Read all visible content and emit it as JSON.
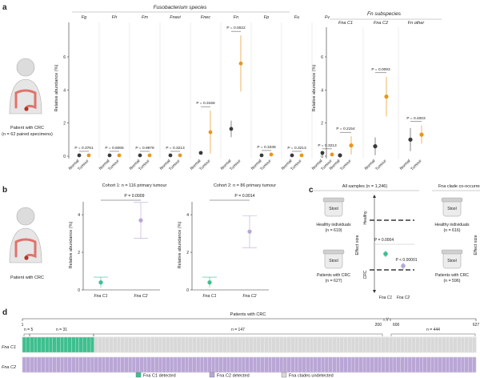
{
  "panel_labels": {
    "a": "a",
    "b": "b",
    "c": "c",
    "d": "d"
  },
  "colors": {
    "normal": "#3a3a3a",
    "tumour": "#e8961e",
    "fna_c1": "#3fbf8f",
    "fna_c2": "#b9a6d6",
    "undetected": "#d8d8d8",
    "axis": "#333333",
    "pbar": "#444444"
  },
  "panel_a": {
    "species_title": "Fusobacterium species",
    "subspecies_title": "Fn subspecies",
    "patient_label": "Patient with CRC",
    "patient_sub": "(n = 62 paired specimens)",
    "ylabel": "Relative abundance (%)",
    "xticks": [
      "Normal",
      "Tumour"
    ],
    "yticks_left": [
      "0",
      "2",
      "4",
      "6"
    ],
    "yticks_right": [
      "0",
      "2",
      "4",
      "6"
    ],
    "species": [
      {
        "name": "Fg",
        "p": "P = 0.3761",
        "normal": 0.05,
        "tumour": 0.05
      },
      {
        "name": "Fh",
        "p": "P = 0.6065",
        "normal": 0.05,
        "tumour": 0.05
      },
      {
        "name": "Fm",
        "p": "P = 0.9978",
        "normal": 0.05,
        "tumour": 0.05
      },
      {
        "name": "Fnavi",
        "p": "P = 0.3213",
        "normal": 0.05,
        "tumour": 0.05
      },
      {
        "name": "Fnec",
        "p": "P = 0.3158",
        "normal": 0.2,
        "tumour": 1.45
      },
      {
        "name": "Fn",
        "p": "P = 0.0022",
        "normal": 1.65,
        "tumour": 5.6
      },
      {
        "name": "Fp",
        "p": "P = 0.3338",
        "normal": 0.05,
        "tumour": 0.1
      },
      {
        "name": "Fu",
        "p": "P = 0.3213",
        "normal": 0.05,
        "tumour": 0.05
      },
      {
        "name": "Fv",
        "p": "P = 0.3213",
        "normal": 0.2,
        "tumour": 0.1
      }
    ],
    "subspecies": [
      {
        "name": "Fna C1",
        "p": "P = 0.2154",
        "normal": 0.05,
        "tumour": 0.65
      },
      {
        "name": "Fna C2",
        "p": "P = 0.0093",
        "normal": 0.6,
        "tumour": 3.6
      },
      {
        "name": "Fn other",
        "p": "P = 0.4003",
        "normal": 1.0,
        "tumour": 1.3
      }
    ]
  },
  "panel_b": {
    "patient_label": "Patient with CRC",
    "ylabel": "Relative abundance (%)",
    "cohorts": [
      {
        "title": "Cohort 1: n = 116 primary tumour",
        "p": "P = 0.0009",
        "c1": 0.4,
        "c2": 3.7,
        "yticks": [
          "0",
          "2",
          "4"
        ]
      },
      {
        "title": "Cohort 2: n = 86 primary tumour",
        "p": "P = 0.0014",
        "c1": 0.4,
        "c2": 3.1,
        "yticks": [
          "0",
          "2",
          "4"
        ]
      }
    ],
    "xticks": [
      "Fna C1",
      "Fna C2"
    ]
  },
  "panel_c": {
    "groups": [
      {
        "title": "All samples (n = 1,246)",
        "healthy": "Healthy individuals",
        "healthy_n": "(n = 619)",
        "crc": "Patients with CRC",
        "crc_n": "(n = 627)",
        "p": "P = 0.0004",
        "p2": "P < 0.00001",
        "c1": -0.2,
        "c2": -0.45
      },
      {
        "title": "Fna clade co-occurrence excluded (n = 1,212)",
        "healthy": "Healthy individuals",
        "healthy_n": "(n = 616)",
        "crc": "Patients with CRC",
        "crc_n": "(n = 596)",
        "p": "NS",
        "p2": "P < 0.00001",
        "c1": -0.05,
        "c2": -0.45
      }
    ],
    "stool_label": "Stool",
    "ylabel": "Effect size",
    "healthy_axis": "Healthy",
    "crc_axis": "CRC",
    "xticks": [
      "Fna C1",
      "Fna C2"
    ]
  },
  "panel_d": {
    "title": "Patients with CRC",
    "ticks": [
      "1",
      "200",
      "600",
      "627"
    ],
    "brackets": [
      "n = 5",
      "n = 31",
      "n = 147",
      "n = 444"
    ],
    "rows": [
      "Fna C1",
      "Fna C2"
    ],
    "legend": [
      "Fna C1 detected",
      "Fna C2 detected",
      "Fna clades undetected"
    ]
  }
}
